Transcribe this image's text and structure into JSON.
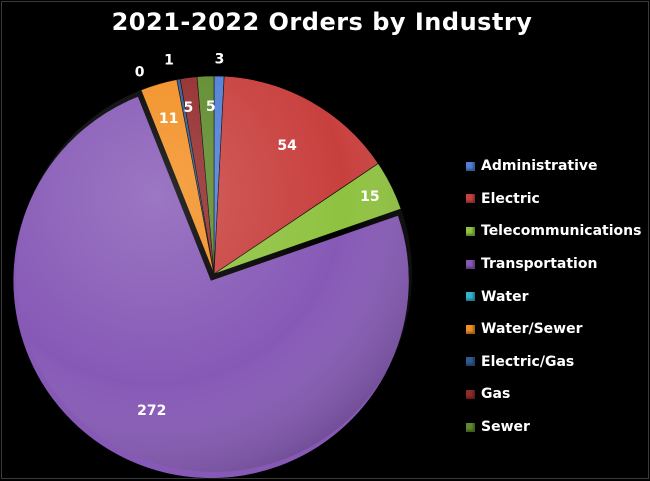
{
  "chart_data": {
    "type": "pie",
    "title": "2021-2022 Orders by Industry",
    "legend_position": "right",
    "slices": [
      {
        "label": "Administrative",
        "value": 3,
        "color": "#4f7fd6"
      },
      {
        "label": "Electric",
        "value": 54,
        "color": "#c8403e"
      },
      {
        "label": "Telecommunications",
        "value": 15,
        "color": "#8fc240"
      },
      {
        "label": "Transportation",
        "value": 272,
        "color": "#8659b6"
      },
      {
        "label": "Water",
        "value": 0,
        "color": "#31b4d0"
      },
      {
        "label": "Water/Sewer",
        "value": 11,
        "color": "#f28f22"
      },
      {
        "label": "Electric/Gas",
        "value": 1,
        "color": "#2f5b94"
      },
      {
        "label": "Gas",
        "value": 5,
        "color": "#932a2a"
      },
      {
        "label": "Sewer",
        "value": 5,
        "color": "#5e8a2c"
      }
    ],
    "data_labels": [
      {
        "slice": "Administrative",
        "text": "3"
      },
      {
        "slice": "Electric",
        "text": "54"
      },
      {
        "slice": "Telecommunications",
        "text": "15"
      },
      {
        "slice": "Transportation",
        "text": "272"
      },
      {
        "slice": "Water/Sewer",
        "text": "11"
      },
      {
        "slice": "Electric/Gas",
        "text": "1"
      },
      {
        "slice": "Water",
        "text": "0"
      },
      {
        "slice": "Gas",
        "text": "5"
      },
      {
        "slice": "Sewer",
        "text": "5"
      }
    ]
  }
}
